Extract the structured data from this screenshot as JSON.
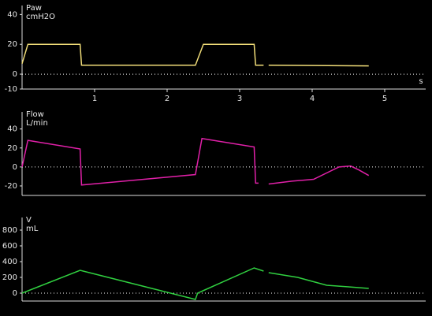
{
  "chart_data": [
    {
      "type": "line",
      "title": "Paw",
      "y_label": "cmH2O",
      "x_label": "s",
      "x": [
        0,
        0.08,
        0.8,
        0.82,
        2.39,
        2.5,
        3.2,
        3.22,
        3.33,
        3.37,
        3.4,
        4.78
      ],
      "values": [
        7,
        20,
        20,
        6,
        6,
        20,
        20,
        6,
        6,
        null,
        6,
        5.5
      ],
      "color": "#f0dc78",
      "xlim": [
        0,
        5.5
      ],
      "xticks": [
        1,
        2,
        3,
        4,
        5
      ],
      "ylim": [
        -10,
        46
      ],
      "yticks": [
        -10,
        0,
        20,
        40
      ],
      "zero_line": true
    },
    {
      "type": "line",
      "title": "Flow",
      "y_label": "L/min",
      "x": [
        0,
        0.08,
        0.8,
        0.82,
        2.39,
        2.48,
        3.2,
        3.22,
        3.26,
        3.33,
        3.4,
        3.72,
        4.02,
        4.37,
        4.53,
        4.64,
        4.78
      ],
      "values": [
        0,
        28,
        19,
        -19,
        -8,
        30,
        21,
        -17,
        -17,
        null,
        -18,
        -15,
        -13,
        0,
        1,
        -3,
        -9
      ],
      "color": "#e020a8",
      "xlim": [
        0,
        5.5
      ],
      "ylim": [
        -30,
        58
      ],
      "yticks": [
        -20,
        0,
        20,
        40
      ],
      "zero_line": true
    },
    {
      "type": "line",
      "title": "V",
      "y_label": "mL",
      "x": [
        0,
        0.8,
        2.39,
        2.42,
        3.2,
        3.33,
        3.37,
        3.4,
        3.8,
        4.2,
        4.5,
        4.78
      ],
      "values": [
        0,
        290,
        -80,
        0,
        320,
        280,
        null,
        260,
        200,
        100,
        80,
        60
      ],
      "color": "#30d040",
      "xlim": [
        0,
        5.5
      ],
      "ylim": [
        -100,
        960
      ],
      "yticks": [
        0,
        200,
        400,
        600,
        800
      ],
      "zero_line": true
    }
  ]
}
